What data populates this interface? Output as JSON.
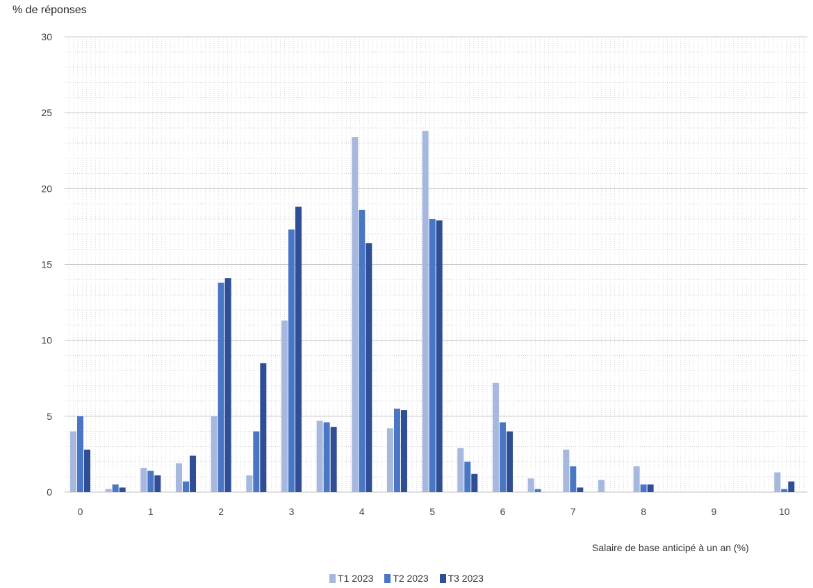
{
  "chart_data": {
    "type": "bar",
    "title": "",
    "ylabel": "% de réponses",
    "xlabel": "Salaire de base anticipé à un an (%)",
    "ylim": [
      0,
      30
    ],
    "yticks": [
      0,
      5,
      10,
      15,
      20,
      25,
      30
    ],
    "grid": true,
    "legend_position": "bottom",
    "x_tick_labels": [
      "0",
      "1",
      "2",
      "3",
      "4",
      "5",
      "6",
      "7",
      "8",
      "9",
      "10"
    ],
    "categories": [
      "0",
      "0.5",
      "1",
      "1.5",
      "2",
      "2.5",
      "3",
      "3.5",
      "4",
      "4.5",
      "5",
      "5.5",
      "6",
      "6.5",
      "7",
      "7.5",
      "8",
      "8.5",
      "9",
      "9.5",
      "10"
    ],
    "series": [
      {
        "name": "T1 2023",
        "color": "#a6b8dd",
        "values": [
          4.0,
          0.2,
          1.6,
          1.9,
          5.0,
          1.1,
          11.3,
          4.7,
          23.4,
          4.2,
          23.8,
          2.9,
          7.2,
          0.9,
          2.8,
          0.8,
          1.7,
          0.0,
          0.0,
          0.0,
          1.3
        ]
      },
      {
        "name": "T2 2023",
        "color": "#4a76c6",
        "values": [
          5.0,
          0.5,
          1.4,
          0.7,
          13.8,
          4.0,
          17.3,
          4.6,
          18.6,
          5.5,
          18.0,
          2.0,
          4.6,
          0.2,
          1.7,
          0.0,
          0.5,
          0.0,
          0.0,
          0.0,
          0.2
        ]
      },
      {
        "name": "T3 2023",
        "color": "#2f4e96",
        "values": [
          2.8,
          0.3,
          1.1,
          2.4,
          14.1,
          8.5,
          18.8,
          4.3,
          16.4,
          5.4,
          17.9,
          1.2,
          4.0,
          0.0,
          0.3,
          0.0,
          0.5,
          0.0,
          0.0,
          0.0,
          0.7
        ]
      }
    ]
  }
}
